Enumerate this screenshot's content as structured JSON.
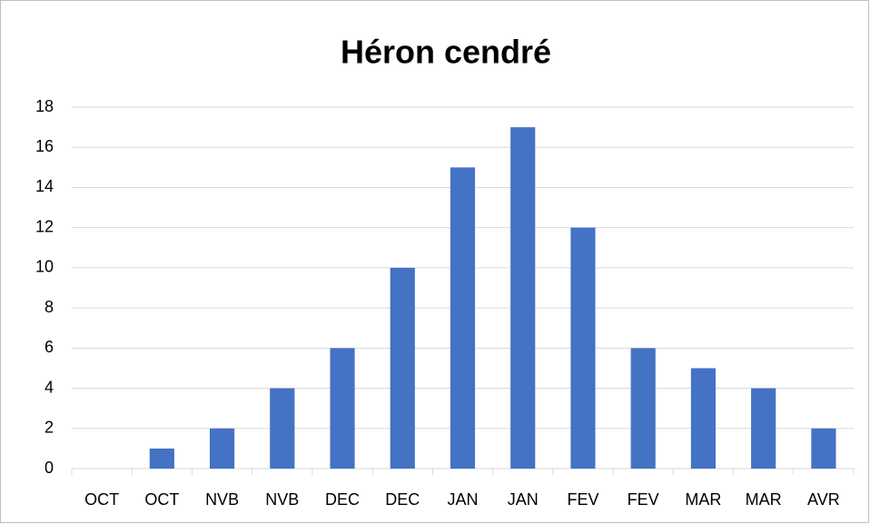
{
  "chart_data": {
    "type": "bar",
    "title": "Héron cendré",
    "categories": [
      "OCT",
      "OCT",
      "NVB",
      "NVB",
      "DEC",
      "DEC",
      "JAN",
      "JAN",
      "FEV",
      "FEV",
      "MAR",
      "MAR",
      "AVR"
    ],
    "values": [
      0,
      1,
      2,
      4,
      6,
      10,
      15,
      17,
      12,
      6,
      5,
      4,
      2
    ],
    "color": "#4472c4",
    "ylim": [
      0,
      18
    ],
    "yticks": [
      0,
      2,
      4,
      6,
      8,
      10,
      12,
      14,
      16,
      18
    ],
    "grid": true
  }
}
